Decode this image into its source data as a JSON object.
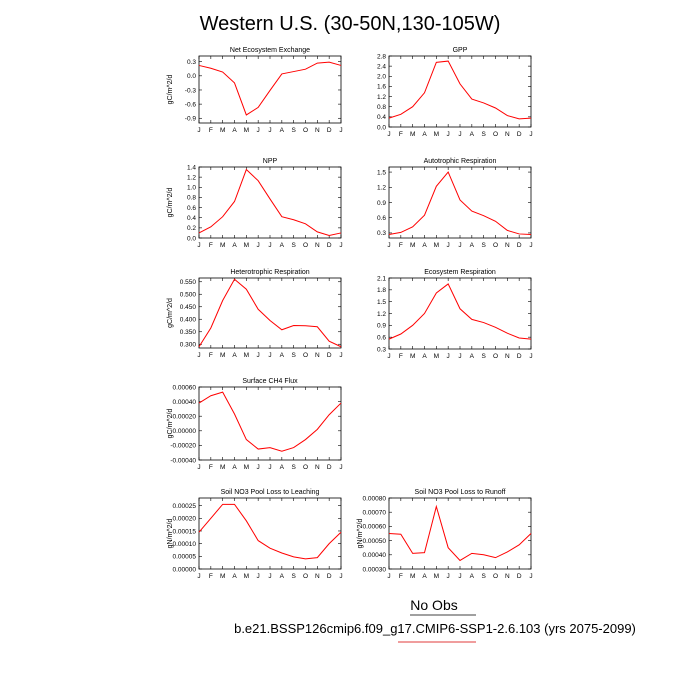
{
  "page": {
    "title": "Western U.S. (30-50N,130-105W)",
    "legend_label": "No Obs",
    "caption": "b.e21.BSSP126cmip6.f09_g17.CMIP6-SSP1-2.6.103 (yrs 2075-2099)",
    "caption_line_color": "#e23b3b"
  },
  "chart_data": [
    {
      "type": "line",
      "title": "Net Ecosystem Exchange",
      "ylabel": "gC/m^2/d",
      "x": [
        "J",
        "F",
        "M",
        "A",
        "M",
        "J",
        "J",
        "A",
        "S",
        "O",
        "N",
        "D",
        "J"
      ],
      "ylim": [
        -1.0,
        0.42
      ],
      "yticks": [
        "0.3",
        "0.0",
        "-0.3",
        "-0.6",
        "-0.9"
      ],
      "ytick_values": [
        0.3,
        0.0,
        -0.3,
        -0.6,
        -0.9
      ],
      "series": [
        {
          "color": "#ff0000",
          "values": [
            0.22,
            0.16,
            0.08,
            -0.15,
            -0.83,
            -0.67,
            -0.31,
            0.04,
            0.09,
            0.14,
            0.27,
            0.29,
            0.22
          ]
        }
      ]
    },
    {
      "type": "line",
      "title": "GPP",
      "ylabel": "",
      "x": [
        "J",
        "F",
        "M",
        "A",
        "M",
        "J",
        "J",
        "A",
        "S",
        "O",
        "N",
        "D",
        "J"
      ],
      "ylim": [
        0.0,
        2.8
      ],
      "yticks": [
        "2.8",
        "2.4",
        "2.0",
        "1.6",
        "1.2",
        "0.8",
        "0.4",
        "0.0"
      ],
      "ytick_values": [
        2.8,
        2.4,
        2.0,
        1.6,
        1.2,
        0.8,
        0.4,
        0.0
      ],
      "series": [
        {
          "color": "#ff0000",
          "values": [
            0.35,
            0.5,
            0.8,
            1.35,
            2.55,
            2.6,
            1.7,
            1.1,
            0.95,
            0.75,
            0.45,
            0.32,
            0.35
          ]
        }
      ]
    },
    {
      "type": "line",
      "title": "NPP",
      "ylabel": "gC/m^2/d",
      "x": [
        "J",
        "F",
        "M",
        "A",
        "M",
        "J",
        "J",
        "A",
        "S",
        "O",
        "N",
        "D",
        "J"
      ],
      "ylim": [
        0.0,
        1.4
      ],
      "yticks": [
        "1.4",
        "1.2",
        "1.0",
        "0.8",
        "0.6",
        "0.4",
        "0.2",
        "0.0"
      ],
      "ytick_values": [
        1.4,
        1.2,
        1.0,
        0.8,
        0.6,
        0.4,
        0.2,
        0.0
      ],
      "series": [
        {
          "color": "#ff0000",
          "values": [
            0.1,
            0.22,
            0.42,
            0.72,
            1.35,
            1.13,
            0.77,
            0.42,
            0.36,
            0.28,
            0.12,
            0.05,
            0.1
          ]
        }
      ]
    },
    {
      "type": "line",
      "title": "Autotrophic Respiration",
      "ylabel": "",
      "x": [
        "J",
        "F",
        "M",
        "A",
        "M",
        "J",
        "J",
        "A",
        "S",
        "O",
        "N",
        "D",
        "J"
      ],
      "ylim": [
        0.2,
        1.6
      ],
      "yticks": [
        "1.5",
        "1.2",
        "0.9",
        "0.6",
        "0.3"
      ],
      "ytick_values": [
        1.5,
        1.2,
        0.9,
        0.6,
        0.3
      ],
      "series": [
        {
          "color": "#ff0000",
          "values": [
            0.27,
            0.31,
            0.42,
            0.65,
            1.22,
            1.5,
            0.95,
            0.73,
            0.64,
            0.53,
            0.35,
            0.28,
            0.27
          ]
        }
      ]
    },
    {
      "type": "line",
      "title": "Heterotrophic Respiration",
      "ylabel": "gC/m^2/d",
      "x": [
        "J",
        "F",
        "M",
        "A",
        "M",
        "J",
        "J",
        "A",
        "S",
        "O",
        "N",
        "D",
        "J"
      ],
      "ylim": [
        0.285,
        0.565
      ],
      "yticks": [
        "0.550",
        "0.500",
        "0.450",
        "0.400",
        "0.350",
        "0.300"
      ],
      "ytick_values": [
        0.55,
        0.5,
        0.45,
        0.4,
        0.35,
        0.3
      ],
      "series": [
        {
          "color": "#ff0000",
          "values": [
            0.29,
            0.365,
            0.475,
            0.56,
            0.52,
            0.44,
            0.395,
            0.358,
            0.375,
            0.374,
            0.37,
            0.312,
            0.29
          ]
        }
      ]
    },
    {
      "type": "line",
      "title": "Ecosystem Respiration",
      "ylabel": "",
      "x": [
        "J",
        "F",
        "M",
        "A",
        "M",
        "J",
        "J",
        "A",
        "S",
        "O",
        "N",
        "D",
        "J"
      ],
      "ylim": [
        0.3,
        2.1
      ],
      "yticks": [
        "2.1",
        "1.8",
        "1.5",
        "1.2",
        "0.9",
        "0.6",
        "0.3"
      ],
      "ytick_values": [
        2.1,
        1.8,
        1.5,
        1.2,
        0.9,
        0.6,
        0.3
      ],
      "series": [
        {
          "color": "#ff0000",
          "values": [
            0.55,
            0.68,
            0.9,
            1.2,
            1.72,
            1.95,
            1.32,
            1.05,
            0.97,
            0.85,
            0.7,
            0.58,
            0.55
          ]
        }
      ]
    },
    {
      "type": "line",
      "title": "Surface CH4 Flux",
      "ylabel": "gC/m^2/d",
      "x": [
        "J",
        "F",
        "M",
        "A",
        "M",
        "J",
        "J",
        "A",
        "S",
        "O",
        "N",
        "D",
        "J"
      ],
      "ylim": [
        -0.0004,
        0.0006
      ],
      "yticks": [
        "0.00060",
        "0.00040",
        "0.00020",
        "0.00000",
        "-0.00020",
        "-0.00040"
      ],
      "ytick_values": [
        0.0006,
        0.0004,
        0.0002,
        0.0,
        -0.0002,
        -0.0004
      ],
      "series": [
        {
          "color": "#ff0000",
          "values": [
            0.00038,
            0.00048,
            0.00053,
            0.00023,
            -0.00012,
            -0.00025,
            -0.00023,
            -0.00028,
            -0.00023,
            -0.00012,
            2e-05,
            0.00022,
            0.00038
          ]
        }
      ]
    },
    {
      "type": "line",
      "title": "Soil NO3 Pool Loss to Leaching",
      "ylabel": "gN/m^2/d",
      "x": [
        "J",
        "F",
        "M",
        "A",
        "M",
        "J",
        "J",
        "A",
        "S",
        "O",
        "N",
        "D",
        "J"
      ],
      "ylim": [
        0.0,
        0.00028
      ],
      "yticks": [
        "0.00025",
        "0.00020",
        "0.00015",
        "0.00010",
        "0.00005",
        "0.00000"
      ],
      "ytick_values": [
        0.00025,
        0.0002,
        0.00015,
        0.0001,
        5e-05,
        0.0
      ],
      "series": [
        {
          "color": "#ff0000",
          "values": [
            0.000145,
            0.0002,
            0.000255,
            0.000255,
            0.00019,
            0.000112,
            8.2e-05,
            6.3e-05,
            4.8e-05,
            4e-05,
            4.5e-05,
            0.0001,
            0.000145
          ]
        }
      ]
    },
    {
      "type": "line",
      "title": "Soil NO3 Pool Loss to Runoff",
      "ylabel": "gN/m^2/d",
      "x": [
        "J",
        "F",
        "M",
        "A",
        "M",
        "J",
        "J",
        "A",
        "S",
        "O",
        "N",
        "D",
        "J"
      ],
      "ylim": [
        0.0003,
        0.0008
      ],
      "yticks": [
        "0.00080",
        "0.00070",
        "0.00060",
        "0.00050",
        "0.00040",
        "0.00030"
      ],
      "ytick_values": [
        0.0008,
        0.0007,
        0.0006,
        0.0005,
        0.0004,
        0.0003
      ],
      "series": [
        {
          "color": "#ff0000",
          "values": [
            0.00055,
            0.000545,
            0.00041,
            0.000415,
            0.00074,
            0.00045,
            0.00036,
            0.00041,
            0.0004,
            0.00038,
            0.00042,
            0.00047,
            0.00055
          ]
        }
      ]
    }
  ]
}
